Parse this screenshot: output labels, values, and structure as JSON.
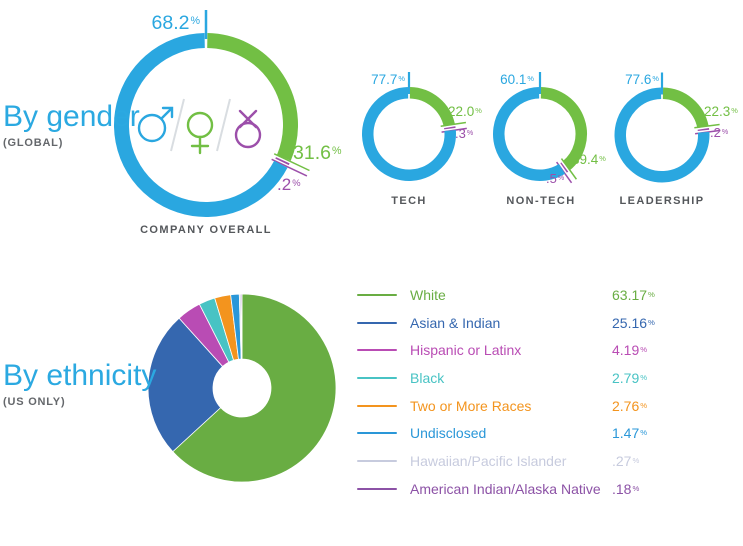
{
  "gender": {
    "title": "By gender",
    "subtitle": "(GLOBAL)",
    "icons": [
      "male",
      "female",
      "other-gender"
    ],
    "colors": {
      "male": "#2AA7E0",
      "female": "#72BF44",
      "other": "#9C4FAA"
    }
  },
  "ethnicity": {
    "title": "By ethnicity",
    "subtitle": "(US ONLY)"
  },
  "chart_data": [
    {
      "type": "donut",
      "title": "COMPANY OVERALL",
      "series": [
        {
          "name": "male",
          "value": 68.2,
          "label": "68.2%",
          "color": "#2AA7E0"
        },
        {
          "name": "female",
          "value": 31.6,
          "label": "31.6%",
          "color": "#72BF44"
        },
        {
          "name": "other",
          "value": 0.2,
          "label": ".2%",
          "color": "#9C4FAA"
        }
      ]
    },
    {
      "type": "donut",
      "title": "TECH",
      "series": [
        {
          "name": "male",
          "value": 77.7,
          "label": "77.7%",
          "color": "#2AA7E0"
        },
        {
          "name": "female",
          "value": 22.0,
          "label": "22.0%",
          "color": "#72BF44"
        },
        {
          "name": "other",
          "value": 0.3,
          "label": ".3%",
          "color": "#9C4FAA"
        }
      ]
    },
    {
      "type": "donut",
      "title": "NON-TECH",
      "series": [
        {
          "name": "male",
          "value": 60.1,
          "label": "60.1%",
          "color": "#2AA7E0"
        },
        {
          "name": "female",
          "value": 39.4,
          "label": "39.4%",
          "color": "#72BF44"
        },
        {
          "name": "other",
          "value": 0.5,
          "label": ".5%",
          "color": "#9C4FAA"
        }
      ]
    },
    {
      "type": "donut",
      "title": "LEADERSHIP",
      "series": [
        {
          "name": "male",
          "value": 77.6,
          "label": "77.6%",
          "color": "#2AA7E0"
        },
        {
          "name": "female",
          "value": 22.3,
          "label": "22.3%",
          "color": "#72BF44"
        },
        {
          "name": "other",
          "value": 0.2,
          "label": ".2%",
          "color": "#9C4FAA"
        }
      ]
    },
    {
      "type": "pie",
      "title": "By ethnicity",
      "series": [
        {
          "name": "White",
          "value": 63.17,
          "label": "63.17%",
          "color": "#69AD43"
        },
        {
          "name": "Asian & Indian",
          "value": 25.16,
          "label": "25.16%",
          "color": "#3567AF"
        },
        {
          "name": "Hispanic or Latinx",
          "value": 4.19,
          "label": "4.19%",
          "color": "#B94CB4"
        },
        {
          "name": "Black",
          "value": 2.79,
          "label": "2.79%",
          "color": "#48C3C4"
        },
        {
          "name": "Two or More Races",
          "value": 2.76,
          "label": "2.76%",
          "color": "#F3941E"
        },
        {
          "name": "Undisclosed",
          "value": 1.47,
          "label": "1.47%",
          "color": "#2A97D8"
        },
        {
          "name": "Hawaiian/Pacific Islander",
          "value": 0.27,
          "label": ".27%",
          "color": "#C7CBDE"
        },
        {
          "name": "American Indian/Alaska Native",
          "value": 0.18,
          "label": ".18%",
          "color": "#8C52A6"
        }
      ]
    }
  ]
}
